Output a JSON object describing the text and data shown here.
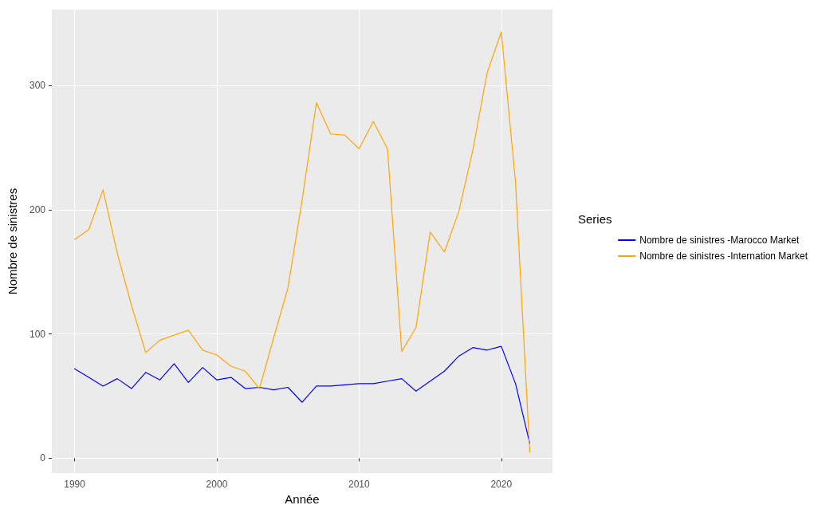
{
  "chart_data": {
    "type": "line",
    "xlabel": "Année",
    "ylabel": "Nombre de sinistres",
    "legend_title": "Series",
    "x": [
      1990,
      1991,
      1992,
      1993,
      1994,
      1995,
      1996,
      1997,
      1998,
      1999,
      2000,
      2001,
      2002,
      2003,
      2004,
      2005,
      2006,
      2007,
      2008,
      2009,
      2010,
      2011,
      2012,
      2013,
      2014,
      2015,
      2016,
      2017,
      2018,
      2019,
      2020,
      2021,
      2022
    ],
    "series": [
      {
        "name": "Nombre de sinistres -Marocco Market",
        "color": "#0000ff",
        "values": [
          72,
          65,
          58,
          64,
          56,
          69,
          63,
          76,
          61,
          73,
          63,
          65,
          56,
          57,
          55,
          57,
          45,
          58,
          58,
          59,
          60,
          60,
          62,
          64,
          54,
          62,
          70,
          82,
          89,
          87,
          90,
          60,
          12
        ]
      },
      {
        "name": "Nombre de sinistres -Internation Market",
        "color": "#ffa500",
        "values": [
          176,
          184,
          216,
          165,
          123,
          85,
          95,
          99,
          103,
          87,
          83,
          74,
          70,
          56,
          97,
          137,
          208,
          286,
          261,
          260,
          249,
          271,
          249,
          86,
          105,
          182,
          166,
          198,
          248,
          310,
          343,
          222,
          5
        ]
      }
    ],
    "xlim": [
      1988.4,
      2023.6
    ],
    "ylim": [
      -12,
      361
    ],
    "xticks": [
      1990,
      2000,
      2010,
      2020
    ],
    "yticks": [
      0,
      100,
      200,
      300
    ],
    "grid": true,
    "legend": "right",
    "marker": "none",
    "line_style": "solid"
  }
}
